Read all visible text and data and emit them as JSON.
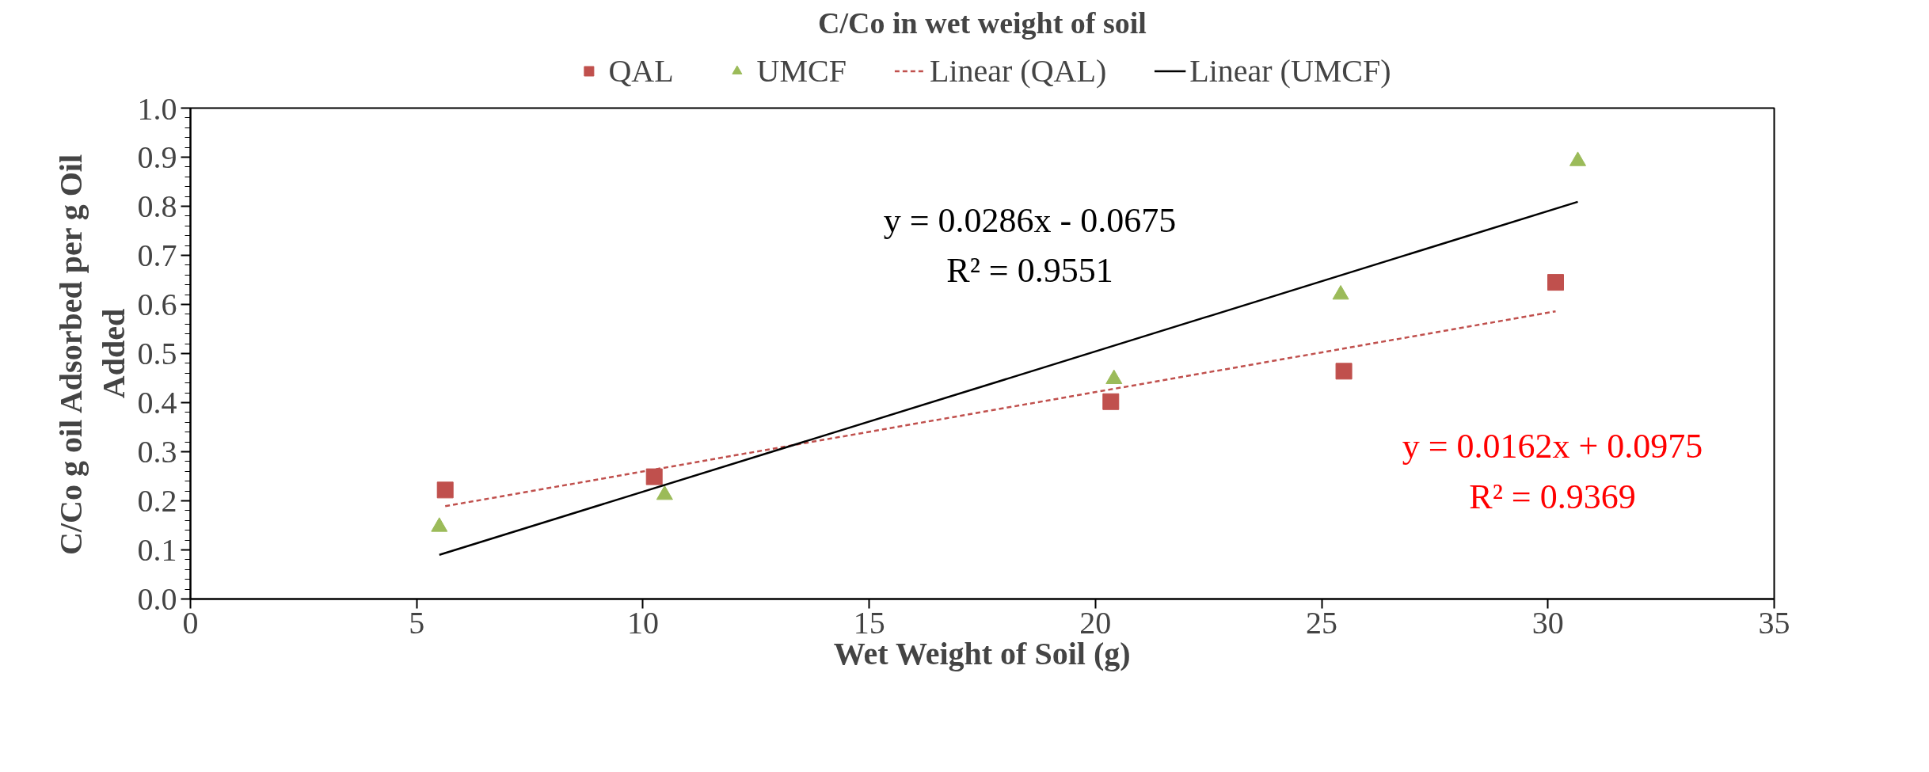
{
  "chart_data": {
    "type": "scatter",
    "title": "C/Co in wet weight of soil",
    "xlabel": "Wet Weight of Soil (g)",
    "ylabel": "C/Co g oil Adsorbed per g Oil\nAdded",
    "series": [
      {
        "name": "QAL",
        "marker": "square",
        "color": "#c0504d",
        "x": [
          5.63,
          10.25,
          20.34,
          25.49,
          30.17
        ],
        "values": [
          0.222,
          0.249,
          0.402,
          0.464,
          0.645
        ]
      },
      {
        "name": "UMCF",
        "marker": "triangle",
        "color": "#9bbb59",
        "x": [
          5.5,
          10.48,
          20.41,
          25.42,
          30.66
        ],
        "values": [
          0.147,
          0.212,
          0.448,
          0.62,
          0.892
        ]
      },
      {
        "name": "Linear (QAL)",
        "type": "line",
        "line_style": "dashed",
        "color": "#c0504d",
        "x": [
          5.63,
          30.17
        ],
        "values": [
          0.189,
          0.586
        ]
      },
      {
        "name": "Linear (UMCF)",
        "type": "line",
        "line_style": "solid",
        "color": "#000000",
        "x": [
          5.5,
          30.66
        ],
        "values": [
          0.09,
          0.809
        ]
      }
    ],
    "annotations": [
      "y = 0.0286x - 0.0675\nR² = 0.9551",
      "y = 0.0162x + 0.0975\nR² = 0.9369"
    ],
    "xlim": [
      0,
      35
    ],
    "xticks": [
      0,
      5,
      10,
      15,
      20,
      25,
      30,
      35
    ],
    "ylim": [
      0,
      1
    ],
    "yticks": [
      {
        "value": 0,
        "label": "0.0"
      },
      {
        "value": 0.1,
        "label": "0.1"
      },
      {
        "value": 0.2,
        "label": "0.2"
      },
      {
        "value": 0.3,
        "label": "0.3"
      },
      {
        "value": 0.4,
        "label": "0.4"
      },
      {
        "value": 0.5,
        "label": "0.5"
      },
      {
        "value": 0.6,
        "label": "0.6"
      },
      {
        "value": 0.7,
        "label": "0.7"
      },
      {
        "value": 0.8,
        "label": "0.8"
      },
      {
        "value": 0.9,
        "label": "0.9"
      },
      {
        "value": 1,
        "label": "1.0"
      }
    ],
    "grid": false,
    "legend": "top"
  }
}
